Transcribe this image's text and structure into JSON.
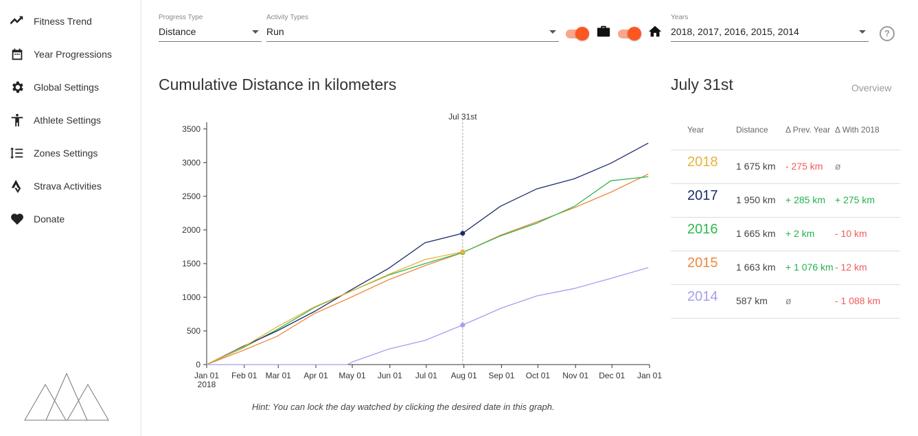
{
  "sidebar": {
    "items": [
      {
        "label": "Fitness Trend",
        "icon": "trend-line-icon"
      },
      {
        "label": "Year Progressions",
        "icon": "calendar-icon"
      },
      {
        "label": "Global Settings",
        "icon": "gear-icon"
      },
      {
        "label": "Athlete Settings",
        "icon": "person-icon"
      },
      {
        "label": "Zones Settings",
        "icon": "zones-icon"
      },
      {
        "label": "Strava Activities",
        "icon": "strava-icon"
      },
      {
        "label": "Donate",
        "icon": "heart-icon"
      }
    ],
    "logo": "mountains-logo-icon"
  },
  "toolbar": {
    "progress_type": {
      "label": "Progress Type",
      "value": "Distance"
    },
    "activity_types": {
      "label": "Activity Types",
      "value": "Run"
    },
    "commute_toggle": {
      "on": true,
      "icon": "briefcase-icon"
    },
    "home_toggle": {
      "on": true,
      "icon": "home-icon"
    },
    "years": {
      "label": "Years",
      "value": "2018, 2017, 2016, 2015, 2014"
    },
    "help_icon": "?"
  },
  "chart_data": {
    "type": "line",
    "title": "Cumulative Distance in kilometers",
    "marker_label": "Jul 31st",
    "marker_date": "2018-07-31",
    "x_axis": {
      "type": "date",
      "range": [
        "2018-01-01",
        "2019-01-01"
      ],
      "ticks": [
        {
          "date": "2018-01-01",
          "label": "Jan 01",
          "sub": "2018"
        },
        {
          "date": "2018-02-01",
          "label": "Feb 01"
        },
        {
          "date": "2018-03-01",
          "label": "Mar 01"
        },
        {
          "date": "2018-04-01",
          "label": "Apr 01"
        },
        {
          "date": "2018-05-01",
          "label": "May 01"
        },
        {
          "date": "2018-06-01",
          "label": "Jun 01"
        },
        {
          "date": "2018-07-01",
          "label": "Jul 01"
        },
        {
          "date": "2018-08-01",
          "label": "Aug 01"
        },
        {
          "date": "2018-09-01",
          "label": "Sep 01"
        },
        {
          "date": "2018-10-01",
          "label": "Oct 01"
        },
        {
          "date": "2018-11-01",
          "label": "Nov 01"
        },
        {
          "date": "2018-12-01",
          "label": "Dec 01"
        },
        {
          "date": "2019-01-01",
          "label": "Jan 01"
        }
      ]
    },
    "y_axis": {
      "range": [
        0,
        3600
      ],
      "ticks": [
        0,
        500,
        1000,
        1500,
        2000,
        2500,
        3000,
        3500
      ]
    },
    "series": [
      {
        "name": "2014",
        "color": "#a59df0",
        "dates": [
          "2018-01-01",
          "2018-04-27",
          "2018-05-01",
          "2018-05-31",
          "2018-06-30",
          "2018-07-31",
          "2018-09-01",
          "2018-09-30",
          "2018-10-31",
          "2018-11-30",
          "2018-12-31"
        ],
        "values": [
          0,
          0,
          40,
          230,
          360,
          587,
          840,
          1020,
          1130,
          1280,
          1440
        ]
      },
      {
        "name": "2015",
        "color": "#f0873c",
        "dates": [
          "2018-01-01",
          "2018-01-31",
          "2018-02-28",
          "2018-03-31",
          "2018-04-30",
          "2018-05-31",
          "2018-06-30",
          "2018-07-31",
          "2018-08-31",
          "2018-09-30",
          "2018-10-31",
          "2018-11-30",
          "2018-12-31"
        ],
        "values": [
          0,
          210,
          420,
          760,
          1000,
          1260,
          1470,
          1663,
          1920,
          2120,
          2330,
          2560,
          2830
        ]
      },
      {
        "name": "2016",
        "color": "#2db84b",
        "dates": [
          "2018-01-01",
          "2018-01-31",
          "2018-02-28",
          "2018-03-31",
          "2018-04-30",
          "2018-05-31",
          "2018-06-30",
          "2018-07-31",
          "2018-08-31",
          "2018-09-30",
          "2018-10-31",
          "2018-11-30",
          "2018-12-31"
        ],
        "values": [
          0,
          250,
          520,
          850,
          1090,
          1330,
          1500,
          1665,
          1910,
          2100,
          2350,
          2730,
          2790
        ]
      },
      {
        "name": "2017",
        "color": "#1d2b6b",
        "dates": [
          "2018-01-01",
          "2018-01-31",
          "2018-02-28",
          "2018-03-31",
          "2018-04-30",
          "2018-05-31",
          "2018-06-30",
          "2018-07-31",
          "2018-08-31",
          "2018-09-30",
          "2018-10-31",
          "2018-11-30",
          "2018-12-31"
        ],
        "values": [
          0,
          270,
          500,
          790,
          1110,
          1430,
          1810,
          1950,
          2350,
          2610,
          2760,
          2990,
          3290
        ]
      },
      {
        "name": "2018",
        "color": "#e8b23a",
        "dates": [
          "2018-01-01",
          "2018-01-31",
          "2018-02-28",
          "2018-03-31",
          "2018-04-30",
          "2018-05-31",
          "2018-06-30",
          "2018-07-31"
        ],
        "values": [
          0,
          260,
          560,
          860,
          1090,
          1340,
          1560,
          1675
        ]
      }
    ]
  },
  "hint": "Hint: You can lock the day watched by clicking the desired date in this graph.",
  "panel": {
    "date_title": "July 31st",
    "overview_link": "Overview",
    "headers": [
      "Year",
      "Distance",
      "Δ Prev. Year",
      "Δ With 2018"
    ],
    "rows": [
      {
        "year": "2018",
        "color": "#e8b23a",
        "distance": "1 675 km",
        "prev": "- 275 km",
        "prev_sign": "neg",
        "with": "ø",
        "with_sign": "nul"
      },
      {
        "year": "2017",
        "color": "#1d2b6b",
        "distance": "1 950 km",
        "prev": "+ 285 km",
        "prev_sign": "pos",
        "with": "+ 275 km",
        "with_sign": "pos"
      },
      {
        "year": "2016",
        "color": "#2db84b",
        "distance": "1 665 km",
        "prev": "+ 2 km",
        "prev_sign": "pos",
        "with": "- 10 km",
        "with_sign": "neg"
      },
      {
        "year": "2015",
        "color": "#f0873c",
        "distance": "1 663 km",
        "prev": "+ 1 076 km",
        "prev_sign": "pos",
        "with": "- 12 km",
        "with_sign": "neg"
      },
      {
        "year": "2014",
        "color": "#a59df0",
        "distance": "587 km",
        "prev": "ø",
        "prev_sign": "nul",
        "with": "- 1 088 km",
        "with_sign": "neg"
      }
    ]
  }
}
